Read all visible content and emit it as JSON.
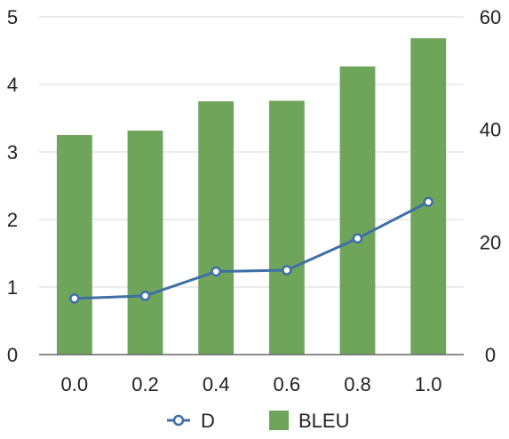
{
  "chart_data": {
    "type": "bar",
    "categories": [
      "0.0",
      "0.2",
      "0.4",
      "0.6",
      "0.8",
      "1.0"
    ],
    "series": [
      {
        "name": "BLEU",
        "type": "bar",
        "axis": "right",
        "color": "#6fa45b",
        "values": [
          39.0,
          39.8,
          45.0,
          45.1,
          51.2,
          56.2
        ]
      },
      {
        "name": "D",
        "type": "line",
        "axis": "left",
        "color": "#3f6fa5",
        "marker": "open-circle",
        "values": [
          0.83,
          0.87,
          1.23,
          1.25,
          1.72,
          2.26
        ]
      }
    ],
    "left_axis": {
      "ylim": [
        0,
        5
      ],
      "ticks": [
        "0",
        "1",
        "2",
        "3",
        "4",
        "5"
      ]
    },
    "right_axis": {
      "ylim": [
        0,
        60
      ],
      "ticks": [
        "0",
        "20",
        "40",
        "60"
      ]
    },
    "grid": true,
    "legend": {
      "position": "bottom",
      "entries": [
        {
          "label": "D",
          "icon": "line-circle-marker"
        },
        {
          "label": "BLEU",
          "icon": "square-swatch"
        }
      ]
    },
    "colors": {
      "grid": "#d9d9d9",
      "axis": "#666666",
      "text": "#222222"
    }
  }
}
